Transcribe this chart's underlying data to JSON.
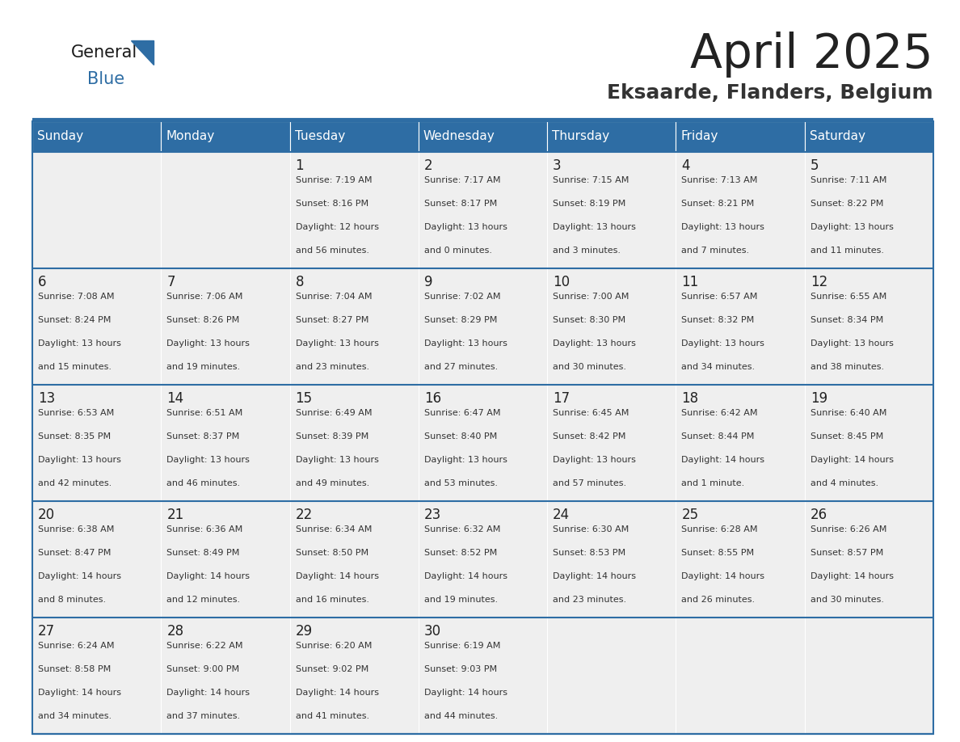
{
  "title": "April 2025",
  "subtitle": "Eksaarde, Flanders, Belgium",
  "days_of_week": [
    "Sunday",
    "Monday",
    "Tuesday",
    "Wednesday",
    "Thursday",
    "Friday",
    "Saturday"
  ],
  "header_bg": "#2E6DA4",
  "header_text": "#FFFFFF",
  "cell_bg_light": "#EFEFEF",
  "cell_text_color": "#333333",
  "day_number_color": "#222222",
  "title_color": "#222222",
  "subtitle_color": "#333333",
  "line_color": "#2E6DA4",
  "logo_general_color": "#1a1a1a",
  "logo_blue_color": "#2E6DA4",
  "calendar": [
    [
      {
        "day": "",
        "info": ""
      },
      {
        "day": "",
        "info": ""
      },
      {
        "day": "1",
        "info": "Sunrise: 7:19 AM\nSunset: 8:16 PM\nDaylight: 12 hours\nand 56 minutes."
      },
      {
        "day": "2",
        "info": "Sunrise: 7:17 AM\nSunset: 8:17 PM\nDaylight: 13 hours\nand 0 minutes."
      },
      {
        "day": "3",
        "info": "Sunrise: 7:15 AM\nSunset: 8:19 PM\nDaylight: 13 hours\nand 3 minutes."
      },
      {
        "day": "4",
        "info": "Sunrise: 7:13 AM\nSunset: 8:21 PM\nDaylight: 13 hours\nand 7 minutes."
      },
      {
        "day": "5",
        "info": "Sunrise: 7:11 AM\nSunset: 8:22 PM\nDaylight: 13 hours\nand 11 minutes."
      }
    ],
    [
      {
        "day": "6",
        "info": "Sunrise: 7:08 AM\nSunset: 8:24 PM\nDaylight: 13 hours\nand 15 minutes."
      },
      {
        "day": "7",
        "info": "Sunrise: 7:06 AM\nSunset: 8:26 PM\nDaylight: 13 hours\nand 19 minutes."
      },
      {
        "day": "8",
        "info": "Sunrise: 7:04 AM\nSunset: 8:27 PM\nDaylight: 13 hours\nand 23 minutes."
      },
      {
        "day": "9",
        "info": "Sunrise: 7:02 AM\nSunset: 8:29 PM\nDaylight: 13 hours\nand 27 minutes."
      },
      {
        "day": "10",
        "info": "Sunrise: 7:00 AM\nSunset: 8:30 PM\nDaylight: 13 hours\nand 30 minutes."
      },
      {
        "day": "11",
        "info": "Sunrise: 6:57 AM\nSunset: 8:32 PM\nDaylight: 13 hours\nand 34 minutes."
      },
      {
        "day": "12",
        "info": "Sunrise: 6:55 AM\nSunset: 8:34 PM\nDaylight: 13 hours\nand 38 minutes."
      }
    ],
    [
      {
        "day": "13",
        "info": "Sunrise: 6:53 AM\nSunset: 8:35 PM\nDaylight: 13 hours\nand 42 minutes."
      },
      {
        "day": "14",
        "info": "Sunrise: 6:51 AM\nSunset: 8:37 PM\nDaylight: 13 hours\nand 46 minutes."
      },
      {
        "day": "15",
        "info": "Sunrise: 6:49 AM\nSunset: 8:39 PM\nDaylight: 13 hours\nand 49 minutes."
      },
      {
        "day": "16",
        "info": "Sunrise: 6:47 AM\nSunset: 8:40 PM\nDaylight: 13 hours\nand 53 minutes."
      },
      {
        "day": "17",
        "info": "Sunrise: 6:45 AM\nSunset: 8:42 PM\nDaylight: 13 hours\nand 57 minutes."
      },
      {
        "day": "18",
        "info": "Sunrise: 6:42 AM\nSunset: 8:44 PM\nDaylight: 14 hours\nand 1 minute."
      },
      {
        "day": "19",
        "info": "Sunrise: 6:40 AM\nSunset: 8:45 PM\nDaylight: 14 hours\nand 4 minutes."
      }
    ],
    [
      {
        "day": "20",
        "info": "Sunrise: 6:38 AM\nSunset: 8:47 PM\nDaylight: 14 hours\nand 8 minutes."
      },
      {
        "day": "21",
        "info": "Sunrise: 6:36 AM\nSunset: 8:49 PM\nDaylight: 14 hours\nand 12 minutes."
      },
      {
        "day": "22",
        "info": "Sunrise: 6:34 AM\nSunset: 8:50 PM\nDaylight: 14 hours\nand 16 minutes."
      },
      {
        "day": "23",
        "info": "Sunrise: 6:32 AM\nSunset: 8:52 PM\nDaylight: 14 hours\nand 19 minutes."
      },
      {
        "day": "24",
        "info": "Sunrise: 6:30 AM\nSunset: 8:53 PM\nDaylight: 14 hours\nand 23 minutes."
      },
      {
        "day": "25",
        "info": "Sunrise: 6:28 AM\nSunset: 8:55 PM\nDaylight: 14 hours\nand 26 minutes."
      },
      {
        "day": "26",
        "info": "Sunrise: 6:26 AM\nSunset: 8:57 PM\nDaylight: 14 hours\nand 30 minutes."
      }
    ],
    [
      {
        "day": "27",
        "info": "Sunrise: 6:24 AM\nSunset: 8:58 PM\nDaylight: 14 hours\nand 34 minutes."
      },
      {
        "day": "28",
        "info": "Sunrise: 6:22 AM\nSunset: 9:00 PM\nDaylight: 14 hours\nand 37 minutes."
      },
      {
        "day": "29",
        "info": "Sunrise: 6:20 AM\nSunset: 9:02 PM\nDaylight: 14 hours\nand 41 minutes."
      },
      {
        "day": "30",
        "info": "Sunrise: 6:19 AM\nSunset: 9:03 PM\nDaylight: 14 hours\nand 44 minutes."
      },
      {
        "day": "",
        "info": ""
      },
      {
        "day": "",
        "info": ""
      },
      {
        "day": "",
        "info": ""
      }
    ]
  ]
}
